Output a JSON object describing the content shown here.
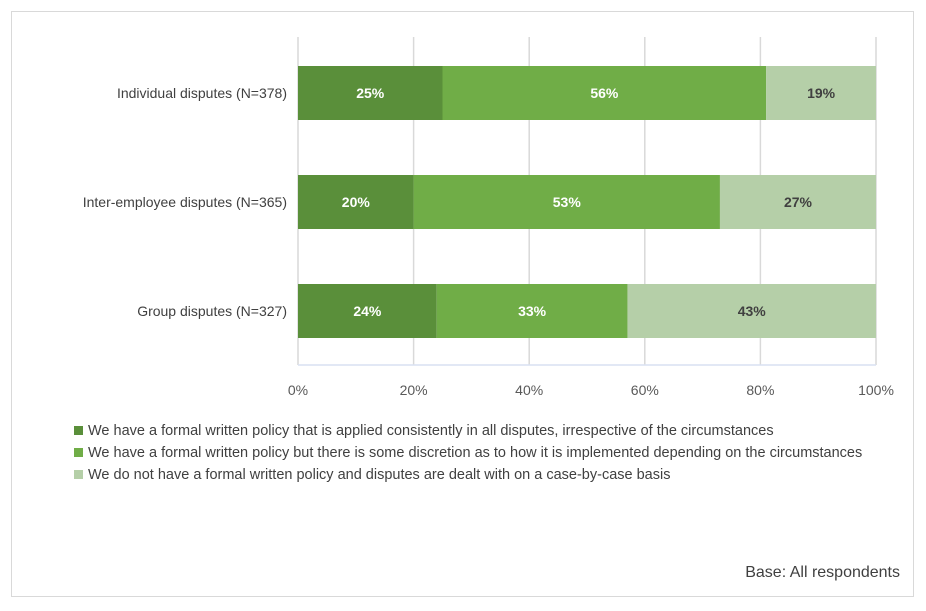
{
  "chart_data": {
    "type": "bar",
    "orientation": "horizontal",
    "stacked": "percent",
    "categories": [
      "Individual disputes (N=378)",
      "Inter-employee disputes (N=365)",
      "Group disputes (N=327)"
    ],
    "series": [
      {
        "name": "We have a formal written policy that is applied consistently in all disputes, irrespective of the circumstances",
        "values": [
          25,
          20,
          24
        ],
        "color": "#5a8f3a",
        "label_color": "#ffffff"
      },
      {
        "name": "We have a formal written policy but there is some discretion as to how it is implemented depending on the circumstances",
        "values": [
          56,
          53,
          33
        ],
        "color": "#70ad47",
        "label_color": "#ffffff"
      },
      {
        "name": "We do not have a formal written policy and disputes are dealt with on a case-by-case basis",
        "values": [
          19,
          27,
          43
        ],
        "color": "#b5cfa8",
        "label_color": "#404040"
      }
    ],
    "xlim": [
      0,
      100
    ],
    "xticks": [
      "0%",
      "20%",
      "40%",
      "60%",
      "80%",
      "100%"
    ],
    "grid": true,
    "legend_position": "bottom"
  },
  "footnote": "Base: All respondents"
}
